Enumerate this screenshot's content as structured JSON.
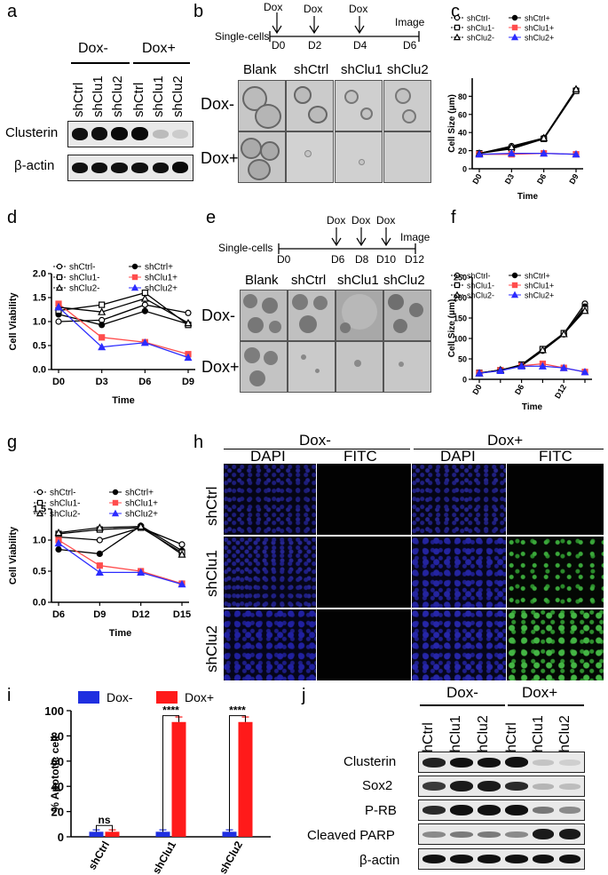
{
  "panels": {
    "a": "a",
    "b": "b",
    "c": "c",
    "d": "d",
    "e": "e",
    "f": "f",
    "g": "g",
    "h": "h",
    "i": "i",
    "j": "j"
  },
  "panel_a": {
    "groups": [
      "Dox-",
      "Dox+"
    ],
    "lanes": [
      "shCtrl",
      "shClu1",
      "shClu2",
      "shCtrl",
      "shClu1",
      "shClu2"
    ],
    "rows": [
      "Clusterin",
      "β-actin"
    ]
  },
  "panel_b": {
    "start": "Single-cells",
    "dox_labels": [
      "Dox",
      "Dox",
      "Dox"
    ],
    "image_label": "Image",
    "days": [
      "D0",
      "D2",
      "D4",
      "D6"
    ],
    "columns": [
      "Blank",
      "shCtrl",
      "shClu1",
      "shClu2"
    ],
    "rows": [
      "Dox-",
      "Dox+"
    ]
  },
  "panel_e": {
    "start": "Single-cells",
    "dox_labels": [
      "Dox",
      "Dox",
      "Dox"
    ],
    "image_label": "Image",
    "days": [
      "D0",
      "D6",
      "D8",
      "D10",
      "D12"
    ],
    "columns": [
      "Blank",
      "shCtrl",
      "shClu1",
      "shClu2"
    ],
    "rows": [
      "Dox-",
      "Dox+"
    ]
  },
  "panel_h": {
    "groups": [
      "Dox-",
      "Dox+"
    ],
    "channels": [
      "DAPI",
      "FITC",
      "DAPI",
      "FITC"
    ],
    "rows": [
      "shCtrl",
      "shClu1",
      "shClu2"
    ]
  },
  "panel_j": {
    "groups": [
      "Dox-",
      "Dox+"
    ],
    "lanes": [
      "shCtrl",
      "shClu1",
      "shClu2",
      "shCtrl",
      "shClu1",
      "shClu2"
    ],
    "rows": [
      "Clusterin",
      "Sox2",
      "P-RB",
      "Cleaved PARP",
      "β-actin"
    ]
  },
  "chart_data": [
    {
      "id": "c",
      "type": "line",
      "categories": [
        "D0",
        "D3",
        "D6",
        "D9"
      ],
      "ylabel": "Cell Size (μm)",
      "xlabel": "Time",
      "ylim": [
        0,
        100
      ],
      "yticks": [
        0,
        20,
        40,
        60,
        80
      ],
      "series": [
        {
          "name": "shCtrl-",
          "values": [
            17,
            25,
            34,
            87
          ],
          "color": "#000000",
          "marker": "circle-open"
        },
        {
          "name": "shCtrl+",
          "values": [
            17,
            23,
            33,
            86
          ],
          "color": "#000000",
          "marker": "circle"
        },
        {
          "name": "shClu1-",
          "values": [
            17,
            22,
            33,
            86
          ],
          "color": "#000000",
          "marker": "square-open"
        },
        {
          "name": "shClu1+",
          "values": [
            16,
            16,
            17,
            16
          ],
          "color": "#ff4d4d",
          "marker": "square"
        },
        {
          "name": "shClu2-",
          "values": [
            17,
            24,
            34,
            88
          ],
          "color": "#000000",
          "marker": "triangle-open"
        },
        {
          "name": "shClu2+",
          "values": [
            16,
            17,
            17,
            16
          ],
          "color": "#2c2cff",
          "marker": "triangle"
        }
      ]
    },
    {
      "id": "d",
      "type": "line",
      "categories": [
        "D0",
        "D3",
        "D6",
        "D9"
      ],
      "ylabel": "Cell Viability",
      "xlabel": "Time",
      "ylim": [
        0,
        2.0
      ],
      "yticks": [
        0.0,
        0.5,
        1.0,
        1.5,
        2.0
      ],
      "series": [
        {
          "name": "shCtrl-",
          "values": [
            1.0,
            1.03,
            1.35,
            1.18
          ],
          "color": "#000000",
          "marker": "circle-open"
        },
        {
          "name": "shCtrl+",
          "values": [
            1.15,
            0.93,
            1.22,
            0.95
          ],
          "color": "#000000",
          "marker": "circle"
        },
        {
          "name": "shClu1-",
          "values": [
            1.23,
            1.35,
            1.6,
            0.93
          ],
          "color": "#000000",
          "marker": "square-open"
        },
        {
          "name": "shClu1+",
          "values": [
            1.37,
            0.67,
            0.57,
            0.32
          ],
          "color": "#ff4d4d",
          "marker": "square"
        },
        {
          "name": "shClu2-",
          "values": [
            1.3,
            1.2,
            1.48,
            0.97
          ],
          "color": "#000000",
          "marker": "triangle-open"
        },
        {
          "name": "shClu2+",
          "values": [
            1.3,
            0.47,
            0.56,
            0.25
          ],
          "color": "#2c2cff",
          "marker": "triangle"
        }
      ]
    },
    {
      "id": "f",
      "type": "line",
      "categories": [
        "D0",
        "D3",
        "D6",
        "D9",
        "D12",
        "D15"
      ],
      "xticklabels": [
        "D0",
        "",
        "D6",
        "",
        "D12",
        ""
      ],
      "ylabel": "Cell Size (μm)",
      "xlabel": "Time",
      "ylim": [
        0,
        250
      ],
      "yticks": [
        0,
        50,
        100,
        150,
        200,
        250
      ],
      "series": [
        {
          "name": "shCtrl-",
          "values": [
            15,
            22,
            35,
            72,
            112,
            185
          ],
          "color": "#000000",
          "marker": "circle-open"
        },
        {
          "name": "shCtrl+",
          "values": [
            15,
            23,
            33,
            70,
            110,
            178
          ],
          "color": "#000000",
          "marker": "circle"
        },
        {
          "name": "shClu1-",
          "values": [
            16,
            22,
            36,
            74,
            113,
            172
          ],
          "color": "#000000",
          "marker": "square-open"
        },
        {
          "name": "shClu1+",
          "values": [
            15,
            22,
            33,
            38,
            28,
            18
          ],
          "color": "#ff4d4d",
          "marker": "square"
        },
        {
          "name": "shClu2-",
          "values": [
            15,
            23,
            34,
            72,
            111,
            168
          ],
          "color": "#000000",
          "marker": "triangle-open"
        },
        {
          "name": "shClu2+",
          "values": [
            15,
            21,
            32,
            32,
            28,
            18
          ],
          "color": "#2c2cff",
          "marker": "triangle"
        }
      ]
    },
    {
      "id": "g",
      "type": "line",
      "categories": [
        "D6",
        "D9",
        "D12",
        "D15"
      ],
      "ylabel": "Cell Viability",
      "xlabel": "Time",
      "ylim": [
        0,
        1.5
      ],
      "yticks": [
        0.0,
        0.5,
        1.0,
        1.5
      ],
      "series": [
        {
          "name": "shCtrl-",
          "values": [
            1.05,
            1.0,
            1.2,
            0.93
          ],
          "color": "#000000",
          "marker": "circle-open"
        },
        {
          "name": "shCtrl+",
          "values": [
            0.85,
            0.78,
            1.23,
            0.83
          ],
          "color": "#000000",
          "marker": "circle"
        },
        {
          "name": "shClu1-",
          "values": [
            1.1,
            1.17,
            1.2,
            0.8
          ],
          "color": "#000000",
          "marker": "square-open"
        },
        {
          "name": "shClu1+",
          "values": [
            1.0,
            0.59,
            0.5,
            0.3
          ],
          "color": "#ff4d4d",
          "marker": "square"
        },
        {
          "name": "shClu2-",
          "values": [
            1.12,
            1.2,
            1.22,
            0.77
          ],
          "color": "#000000",
          "marker": "triangle-open"
        },
        {
          "name": "shClu2+",
          "values": [
            0.95,
            0.48,
            0.48,
            0.29
          ],
          "color": "#2c2cff",
          "marker": "triangle"
        }
      ]
    },
    {
      "id": "i",
      "type": "bar",
      "categories": [
        "shCtrl",
        "shClu1",
        "shClu2"
      ],
      "ylabel": "% Apototic cell",
      "ylim": [
        0,
        100
      ],
      "yticks": [
        0,
        20,
        40,
        60,
        80,
        100
      ],
      "series": [
        {
          "name": "Dox-",
          "values": [
            4,
            4,
            4
          ],
          "color": "#1f2fe0"
        },
        {
          "name": "Dox+",
          "values": [
            4,
            91,
            91
          ],
          "color": "#ff1a1a"
        }
      ],
      "annotations": [
        "ns",
        "****",
        "****"
      ]
    }
  ]
}
